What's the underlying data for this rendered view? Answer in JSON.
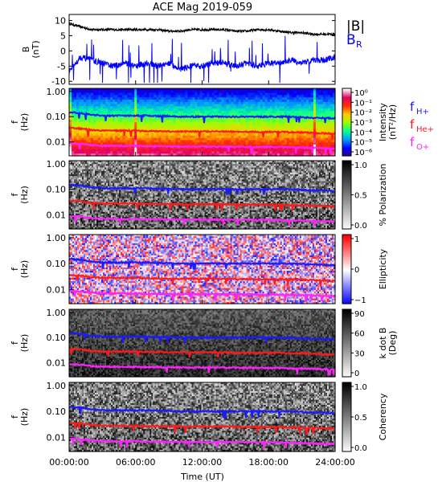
{
  "title": "ACE Mag 2019-059",
  "xlabel": "Time (UT)",
  "x_ticks": [
    "00:00:00",
    "06:00:00",
    "12:00:00",
    "18:00:00",
    "24:00:00"
  ],
  "chart_data": [
    {
      "type": "line",
      "panel": "field",
      "ylabel": "B\n(nT)",
      "ylim": [
        -11,
        12
      ],
      "y_ticks": [
        "10",
        "5",
        "0",
        "-5",
        "-10"
      ],
      "legend": [
        "|B|",
        "B_R"
      ],
      "series": [
        {
          "name": "|B|",
          "color": "#000000",
          "approx_values_hourly": [
            9,
            8,
            7,
            7,
            7,
            7,
            7,
            7,
            7,
            6.5,
            6.5,
            7,
            7,
            7,
            7,
            6.5,
            6.5,
            7,
            7,
            6.5,
            6,
            6,
            5.5,
            5.5,
            5.5
          ]
        },
        {
          "name": "B_R",
          "color": "#0000ff",
          "approx_values_hourly": [
            -7,
            -2,
            -3,
            -4,
            -5,
            -4,
            -5,
            -4,
            -5,
            -4,
            -6,
            -5,
            -5,
            -4,
            -4,
            -5,
            -4,
            -5,
            -4,
            -4,
            -3,
            -4,
            -3,
            -3,
            -2
          ]
        }
      ]
    },
    {
      "type": "heatmap",
      "panel": "psd",
      "ylabel": "f\n(Hz)",
      "y_ticks": [
        "1.00",
        "0.10",
        "0.01"
      ],
      "colorbar_label": "Intensity\n(nT²/Hz)",
      "colorbar_ticks": [
        "10⁰",
        "10⁻¹",
        "10⁻²",
        "10⁻³",
        "10⁻⁴",
        "10⁻⁵",
        "10⁻⁶"
      ],
      "legend": [
        "f_H+",
        "f_He+",
        "f_O+"
      ]
    },
    {
      "type": "heatmap",
      "panel": "polarization",
      "ylabel": "f\n(Hz)",
      "y_ticks": [
        "1.00",
        "0.10",
        "0.01"
      ],
      "colorbar_label": "% Polarization",
      "colorbar_ticks": [
        "1.0",
        "0.5",
        "0.0"
      ]
    },
    {
      "type": "heatmap",
      "panel": "ellipticity",
      "ylabel": "f\n(Hz)",
      "y_ticks": [
        "1.00",
        "0.10",
        "0.01"
      ],
      "colorbar_label": "Ellipticity",
      "colorbar_ticks": [
        "1",
        "0",
        "−1"
      ]
    },
    {
      "type": "heatmap",
      "panel": "kdotb",
      "ylabel": "f\n(Hz)",
      "y_ticks": [
        "1.00",
        "0.10",
        "0.01"
      ],
      "colorbar_label": "k dot B\n(Deg)",
      "colorbar_ticks": [
        "90",
        "60",
        "30",
        "0"
      ]
    },
    {
      "type": "heatmap",
      "panel": "coherency",
      "ylabel": "f\n(Hz)",
      "y_ticks": [
        "1.00",
        "0.10",
        "0.01"
      ],
      "colorbar_label": "Coherency",
      "colorbar_ticks": [
        "1.0",
        "0.5",
        "0.0"
      ]
    }
  ],
  "gyro_lines": [
    {
      "name": "f_H+",
      "color": "#1a1aff",
      "approx_hz_hourly": [
        0.15,
        0.14,
        0.12,
        0.11,
        0.11,
        0.11,
        0.11,
        0.11,
        0.105,
        0.105,
        0.1,
        0.1,
        0.1,
        0.1,
        0.1,
        0.1,
        0.1,
        0.1,
        0.1,
        0.1,
        0.1,
        0.095,
        0.09,
        0.09,
        0.085
      ]
    },
    {
      "name": "f_He+",
      "color": "#ff1a1a",
      "approx_hz_hourly": [
        0.036,
        0.034,
        0.03,
        0.028,
        0.028,
        0.028,
        0.028,
        0.027,
        0.027,
        0.026,
        0.026,
        0.026,
        0.026,
        0.026,
        0.026,
        0.025,
        0.025,
        0.025,
        0.025,
        0.025,
        0.024,
        0.024,
        0.023,
        0.022,
        0.021
      ]
    },
    {
      "name": "f_O+",
      "color": "#ff22ff",
      "approx_hz_hourly": [
        0.009,
        0.0085,
        0.0075,
        0.007,
        0.007,
        0.007,
        0.007,
        0.0068,
        0.0068,
        0.0066,
        0.0066,
        0.0066,
        0.0066,
        0.0065,
        0.0065,
        0.0064,
        0.0064,
        0.0063,
        0.0063,
        0.0063,
        0.006,
        0.006,
        0.0058,
        0.0056,
        0.0054
      ]
    }
  ]
}
